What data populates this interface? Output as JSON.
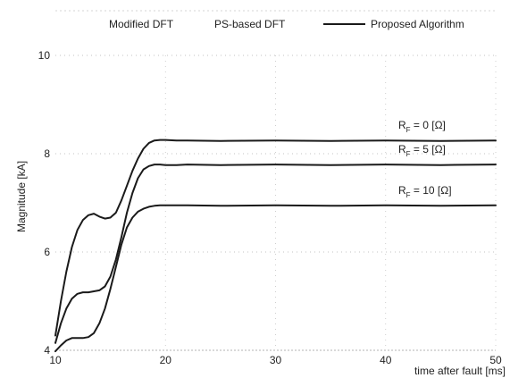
{
  "chart_data": {
    "type": "line",
    "xlabel": "time after fault [ms]",
    "ylabel": "Magnitude [kA]",
    "xlim": [
      10,
      50
    ],
    "ylim": [
      4,
      10
    ],
    "x_ticks": [
      "10",
      "20",
      "30",
      "40",
      "50"
    ],
    "y_ticks": [
      "4",
      "6",
      "8",
      "10"
    ],
    "grid": "dotted",
    "legend": {
      "placement": "top",
      "entries": [
        "Modified DFT",
        "PS-based DFT",
        "Proposed Algorithm"
      ]
    },
    "series": [
      {
        "name": "R_F = 0 [Ω]",
        "label_main": "R",
        "label_sub": "F",
        "label_rest": " = 0 [Ω]",
        "x": [
          10,
          10.5,
          11,
          11.5,
          12,
          12.5,
          13,
          13.5,
          14,
          14.5,
          15,
          15.5,
          16,
          16.5,
          17,
          17.5,
          18,
          18.5,
          19,
          19.5,
          20,
          21,
          22,
          25,
          30,
          35,
          40,
          45,
          50
        ],
        "y": [
          4.3,
          5.0,
          5.6,
          6.1,
          6.45,
          6.65,
          6.75,
          6.78,
          6.72,
          6.68,
          6.7,
          6.8,
          7.05,
          7.35,
          7.65,
          7.9,
          8.1,
          8.22,
          8.27,
          8.28,
          8.28,
          8.27,
          8.27,
          8.26,
          8.27,
          8.26,
          8.27,
          8.26,
          8.27
        ]
      },
      {
        "name": "R_F = 5 [Ω]",
        "label_main": "R",
        "label_sub": "F",
        "label_rest": " = 5 [Ω]",
        "x": [
          10,
          10.5,
          11,
          11.5,
          12,
          12.5,
          13,
          13.5,
          14,
          14.5,
          15,
          15.5,
          16,
          16.5,
          17,
          17.5,
          18,
          18.5,
          19,
          19.5,
          20,
          21,
          22,
          25,
          30,
          35,
          40,
          45,
          50
        ],
        "y": [
          4.15,
          4.55,
          4.85,
          5.05,
          5.15,
          5.18,
          5.18,
          5.2,
          5.22,
          5.3,
          5.5,
          5.85,
          6.3,
          6.8,
          7.2,
          7.5,
          7.68,
          7.75,
          7.78,
          7.78,
          7.77,
          7.77,
          7.78,
          7.77,
          7.78,
          7.77,
          7.78,
          7.77,
          7.78
        ]
      },
      {
        "name": "R_F = 10 [Ω]",
        "label_main": "R",
        "label_sub": "F",
        "label_rest": " = 10 [Ω]",
        "x": [
          10,
          10.5,
          11,
          11.5,
          12,
          12.5,
          13,
          13.5,
          14,
          14.5,
          15,
          15.5,
          16,
          16.5,
          17,
          17.5,
          18,
          18.5,
          19,
          19.5,
          20,
          21,
          22,
          25,
          30,
          35,
          40,
          45,
          50
        ],
        "y": [
          3.98,
          4.1,
          4.2,
          4.25,
          4.25,
          4.25,
          4.27,
          4.35,
          4.55,
          4.85,
          5.25,
          5.7,
          6.15,
          6.5,
          6.7,
          6.82,
          6.88,
          6.92,
          6.94,
          6.95,
          6.95,
          6.95,
          6.95,
          6.94,
          6.95,
          6.94,
          6.95,
          6.94,
          6.95
        ]
      }
    ]
  }
}
